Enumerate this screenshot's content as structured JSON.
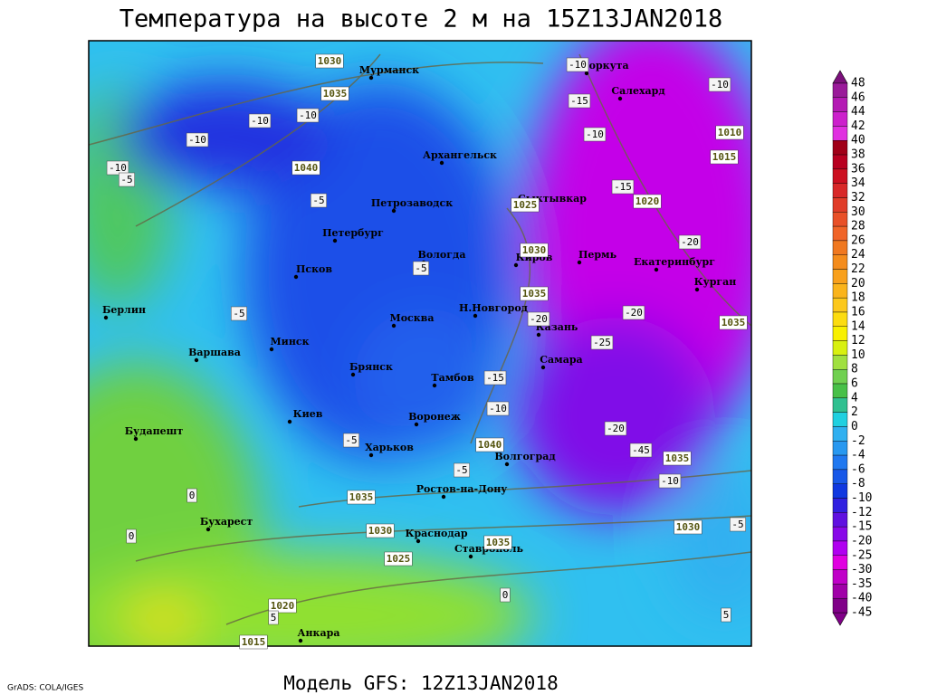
{
  "header": {
    "title": "Температура на высоте 2 м на 15Z13JAN2018"
  },
  "footer": {
    "model": "Модель GFS: 12Z13JAN2018",
    "credit": "GrADS: COLA/IGES"
  },
  "cities": [
    {
      "name": "Мурманск"
    },
    {
      "name": "Воркута"
    },
    {
      "name": "Салехард"
    },
    {
      "name": "Архангельск"
    },
    {
      "name": "Петрозаводск"
    },
    {
      "name": "Сыктывкар"
    },
    {
      "name": "Петербург"
    },
    {
      "name": "Вологда"
    },
    {
      "name": "Киров"
    },
    {
      "name": "Пермь"
    },
    {
      "name": "Екатеринбург"
    },
    {
      "name": "Псков"
    },
    {
      "name": "Курган"
    },
    {
      "name": "Берлин"
    },
    {
      "name": "Н.Новгород"
    },
    {
      "name": "Москва"
    },
    {
      "name": "Казань"
    },
    {
      "name": "Минск"
    },
    {
      "name": "Варшава"
    },
    {
      "name": "Самара"
    },
    {
      "name": "Брянск"
    },
    {
      "name": "Тамбов"
    },
    {
      "name": "Воронеж"
    },
    {
      "name": "Киев"
    },
    {
      "name": "Будапешт"
    },
    {
      "name": "Харьков"
    },
    {
      "name": "Волгоград"
    },
    {
      "name": "Ростов-на-Дону"
    },
    {
      "name": "Бухарест"
    },
    {
      "name": "Краснодар"
    },
    {
      "name": "Ставрополь"
    },
    {
      "name": "Анкара"
    }
  ],
  "isobar_labels": [
    1030,
    1035,
    1040,
    1025,
    1030,
    1035,
    1040,
    1035,
    1030,
    1035,
    1025,
    1020,
    1015,
    1010,
    1015,
    1020,
    1035,
    1035,
    1030
  ],
  "temperature_labels": [
    -10,
    -10,
    -15,
    -10,
    -10,
    -10,
    -10,
    -10,
    -5,
    -15,
    -5,
    -20,
    -5,
    -5,
    -20,
    -20,
    -25,
    -15,
    -10,
    -20,
    -45,
    -5,
    -5,
    -10,
    -5,
    0,
    0,
    5,
    0,
    5
  ],
  "colorbar": {
    "levels": [
      48,
      46,
      44,
      42,
      40,
      38,
      36,
      34,
      32,
      30,
      28,
      26,
      24,
      22,
      20,
      18,
      16,
      14,
      12,
      10,
      8,
      6,
      4,
      2,
      0,
      -2,
      -4,
      -6,
      -8,
      -10,
      -12,
      -15,
      -20,
      -25,
      -30,
      -35,
      -40,
      -45
    ],
    "colors": [
      "#7c107c",
      "#9a1a9a",
      "#b41ab4",
      "#cc20cc",
      "#e030e0",
      "#a00018",
      "#b80020",
      "#cc1020",
      "#d82828",
      "#e03c28",
      "#e85028",
      "#f06428",
      "#f07820",
      "#f48c1c",
      "#f8a01c",
      "#fab41c",
      "#fcc81c",
      "#fcdc10",
      "#f8f000",
      "#d8f010",
      "#a0e040",
      "#70d050",
      "#48c048",
      "#30c090",
      "#20d0e0",
      "#30b0f0",
      "#2898f0",
      "#2078f0",
      "#1858e8",
      "#1038e0",
      "#3020e0",
      "#6010e0",
      "#8808e8",
      "#b000f0",
      "#e000e0",
      "#c000c8",
      "#a000a8",
      "#800088"
    ]
  }
}
